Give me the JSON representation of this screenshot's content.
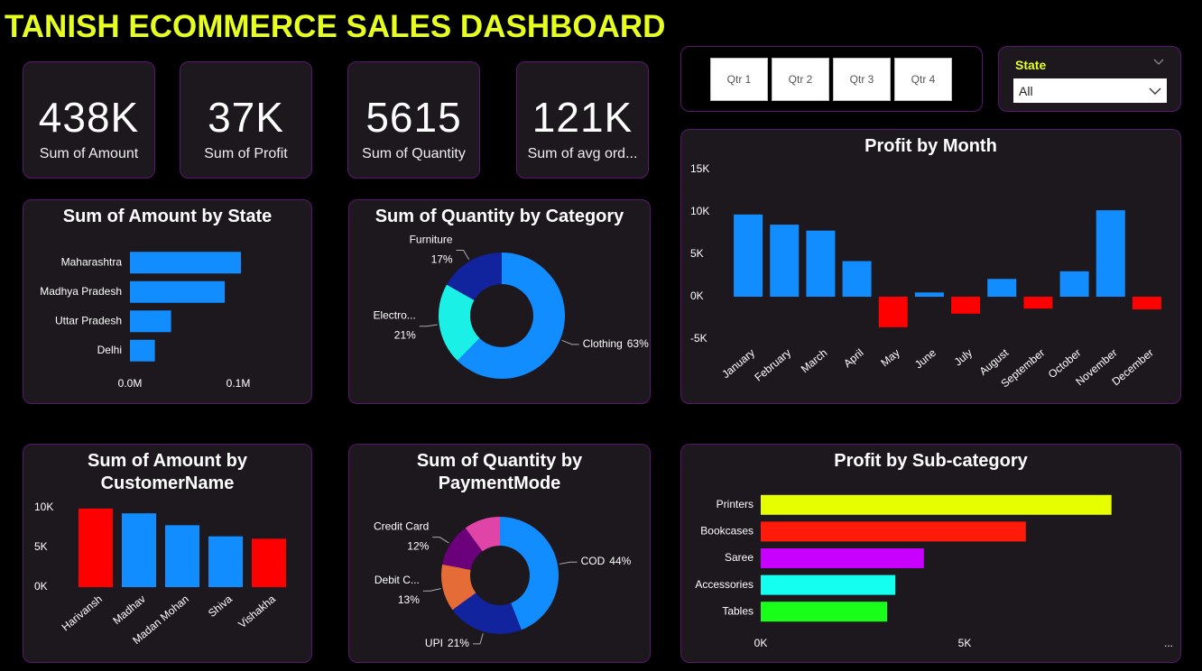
{
  "title": "TANISH ECOMMERCE SALES DASHBOARD",
  "cards": [
    {
      "value": "438K",
      "label": "Sum of Amount"
    },
    {
      "value": "37K",
      "label": "Sum of Profit"
    },
    {
      "value": "5615",
      "label": "Sum of Quantity"
    },
    {
      "value": "121K",
      "label": "Sum of avg ord..."
    }
  ],
  "quarter_slicer": {
    "buttons": [
      "Qtr 1",
      "Qtr 2",
      "Qtr 3",
      "Qtr 4"
    ]
  },
  "state_slicer": {
    "title": "State",
    "selected": "All"
  },
  "chart_data": [
    {
      "type": "bar",
      "horizontal": true,
      "title": "Sum of Amount by State",
      "categories": [
        "Maharashtra",
        "Madhya Pradesh",
        "Uttar Pradesh",
        "Delhi"
      ],
      "values": [
        0.1025,
        0.0875,
        0.038,
        0.023
      ],
      "color": "#118DFF",
      "xlim": [
        0,
        0.11
      ],
      "xticks": [
        {
          "value": 0,
          "label": "0.0M"
        },
        {
          "value": 0.1,
          "label": "0.1M"
        }
      ]
    },
    {
      "type": "donut",
      "title": "Sum of Quantity by Category",
      "categories": [
        "Clothing",
        "Electro...",
        "Furniture"
      ],
      "values": [
        63,
        21,
        17
      ],
      "value_labels": [
        "63%",
        "21%",
        "17%"
      ],
      "colors": [
        "#118DFF",
        "#1AF0E6",
        "#12239E"
      ]
    },
    {
      "type": "bar",
      "title": "Profit by Month",
      "categories": [
        "January",
        "February",
        "March",
        "April",
        "May",
        "June",
        "July",
        "August",
        "September",
        "October",
        "November",
        "December"
      ],
      "values": [
        9700,
        8500,
        7800,
        4200,
        -3600,
        500,
        -2000,
        2100,
        -1400,
        3000,
        10200,
        -1500
      ],
      "color": "#118DFF",
      "negative_color": "#FF0000",
      "ylim": [
        -5000,
        15000
      ],
      "yticks": [
        {
          "value": -5000,
          "label": "-5K"
        },
        {
          "value": 0,
          "label": "0K"
        },
        {
          "value": 5000,
          "label": "5K"
        },
        {
          "value": 10000,
          "label": "10K"
        },
        {
          "value": 15000,
          "label": "15K"
        }
      ]
    },
    {
      "type": "bar",
      "title": "Sum of Amount by CustomerName",
      "categories": [
        "Harivansh",
        "Madhav",
        "Madan Mohan",
        "Shiva",
        "Vishakha"
      ],
      "values": [
        9900,
        9300,
        7800,
        6400,
        6100
      ],
      "colors": [
        "#FF0000",
        "#118DFF",
        "#118DFF",
        "#118DFF",
        "#FF0000"
      ],
      "ylim": [
        0,
        10000
      ],
      "yticks": [
        {
          "value": 0,
          "label": "0K"
        },
        {
          "value": 5000,
          "label": "5K"
        },
        {
          "value": 10000,
          "label": "10K"
        }
      ]
    },
    {
      "type": "donut",
      "title": "Sum of Quantity by PaymentMode",
      "categories": [
        "COD",
        "UPI",
        "Debit C...",
        "Credit Card",
        null
      ],
      "values": [
        44,
        21,
        13,
        12,
        10
      ],
      "value_labels": [
        "44%",
        "21%",
        "13%",
        "12%",
        null
      ],
      "colors": [
        "#118DFF",
        "#12239E",
        "#E66C37",
        "#6B007B",
        "#E044A7"
      ]
    },
    {
      "type": "bar",
      "horizontal": true,
      "title": "Profit by Sub-category",
      "categories": [
        "Printers",
        "Bookcases",
        "Saree",
        "Accessories",
        "Tables"
      ],
      "values": [
        8600,
        6500,
        4000,
        3300,
        3100
      ],
      "colors": [
        "#E6FF00",
        "#FF1A0A",
        "#C800FF",
        "#14FFF0",
        "#1AFF1A"
      ],
      "xlim": [
        0,
        10000
      ],
      "xticks": [
        {
          "value": 0,
          "label": "0K"
        },
        {
          "value": 5000,
          "label": "5K"
        },
        {
          "value": 10000,
          "label": "..."
        }
      ]
    }
  ]
}
